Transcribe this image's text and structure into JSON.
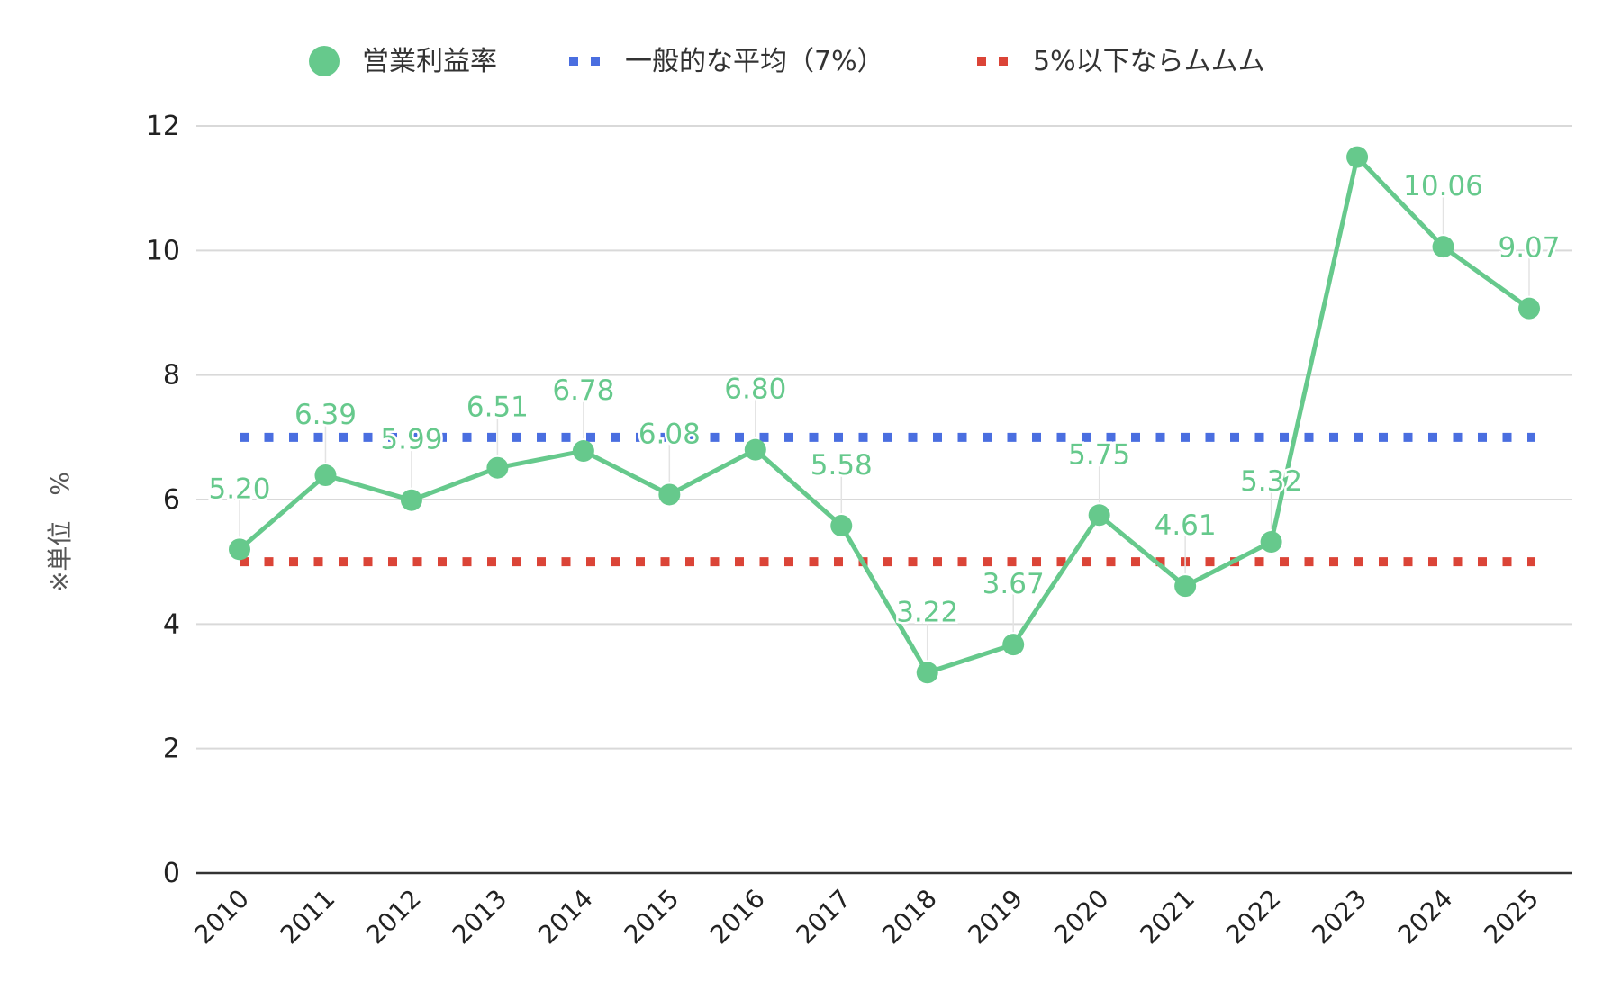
{
  "chart_data": {
    "type": "line",
    "title": "",
    "xlabel": "",
    "ylabel": "※単位　%",
    "ylim": [
      0,
      12
    ],
    "yticks": [
      0,
      2,
      4,
      6,
      8,
      10,
      12
    ],
    "grid": true,
    "legend_position": "top",
    "categories": [
      "2010",
      "2011",
      "2012",
      "2013",
      "2014",
      "2015",
      "2016",
      "2017",
      "2018",
      "2019",
      "2020",
      "2021",
      "2022",
      "2023",
      "2024",
      "2025"
    ],
    "series": [
      {
        "name": "営業利益率",
        "color": "#66c98c",
        "style": "line-with-markers",
        "values": [
          5.2,
          6.39,
          5.99,
          6.51,
          6.78,
          6.08,
          6.8,
          5.58,
          3.22,
          3.67,
          5.75,
          4.61,
          5.32,
          11.5,
          10.06,
          9.07
        ],
        "data_labels": [
          "5.20",
          "6.39",
          "5.99",
          "6.51",
          "6.78",
          "6.08",
          "6.80",
          "5.58",
          "3.22",
          "3.67",
          "5.75",
          "4.61",
          "5.32",
          "",
          "10.06",
          "9.07"
        ]
      },
      {
        "name": "一般的な平均（7%）",
        "color": "#4a6ee0",
        "style": "dotted",
        "values": [
          7,
          7,
          7,
          7,
          7,
          7,
          7,
          7,
          7,
          7,
          7,
          7,
          7,
          7,
          7,
          7
        ]
      },
      {
        "name": "5%以下ならムムム",
        "color": "#db4437",
        "style": "dotted",
        "values": [
          5,
          5,
          5,
          5,
          5,
          5,
          5,
          5,
          5,
          5,
          5,
          5,
          5,
          5,
          5,
          5
        ]
      }
    ]
  }
}
